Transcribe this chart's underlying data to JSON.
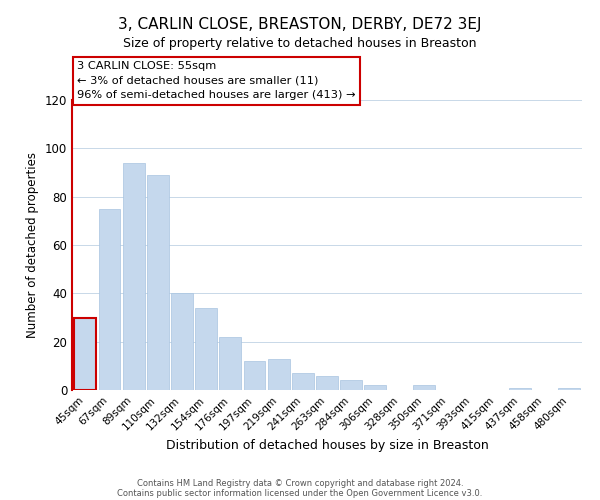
{
  "title": "3, CARLIN CLOSE, BREASTON, DERBY, DE72 3EJ",
  "subtitle": "Size of property relative to detached houses in Breaston",
  "xlabel": "Distribution of detached houses by size in Breaston",
  "ylabel": "Number of detached properties",
  "bar_labels": [
    "45sqm",
    "67sqm",
    "89sqm",
    "110sqm",
    "132sqm",
    "154sqm",
    "176sqm",
    "197sqm",
    "219sqm",
    "241sqm",
    "263sqm",
    "284sqm",
    "306sqm",
    "328sqm",
    "350sqm",
    "371sqm",
    "393sqm",
    "415sqm",
    "437sqm",
    "458sqm",
    "480sqm"
  ],
  "bar_values": [
    30,
    75,
    94,
    89,
    40,
    34,
    22,
    12,
    13,
    7,
    6,
    4,
    2,
    0,
    2,
    0,
    0,
    0,
    1,
    0,
    1
  ],
  "bar_color": "#c5d8ed",
  "bar_edge_color": "#a8c4e0",
  "highlight_bar_index": 0,
  "highlight_outline_color": "#cc0000",
  "ylim": [
    0,
    120
  ],
  "yticks": [
    0,
    20,
    40,
    60,
    80,
    100,
    120
  ],
  "annotation_line1": "3 CARLIN CLOSE: 55sqm",
  "annotation_line2": "← 3% of detached houses are smaller (11)",
  "annotation_line3": "96% of semi-detached houses are larger (413) →",
  "footer_line1": "Contains HM Land Registry data © Crown copyright and database right 2024.",
  "footer_line2": "Contains public sector information licensed under the Open Government Licence v3.0.",
  "background_color": "#ffffff",
  "grid_color": "#c8d8e8"
}
